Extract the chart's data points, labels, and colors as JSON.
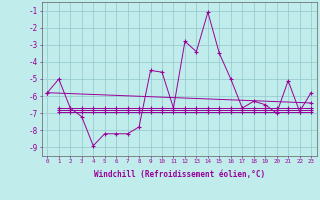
{
  "xlabel": "Windchill (Refroidissement éolien,°C)",
  "xlim": [
    -0.5,
    23.5
  ],
  "ylim": [
    -9.5,
    -0.5
  ],
  "yticks": [
    -9,
    -8,
    -7,
    -6,
    -5,
    -4,
    -3,
    -2,
    -1
  ],
  "xticks": [
    0,
    1,
    2,
    3,
    4,
    5,
    6,
    7,
    8,
    9,
    10,
    11,
    12,
    13,
    14,
    15,
    16,
    17,
    18,
    19,
    20,
    21,
    22,
    23
  ],
  "background_color": "#c0ecec",
  "grid_color": "#90c8cc",
  "line_color": "#990099",
  "lines": [
    {
      "x": [
        0,
        1,
        2,
        3,
        4,
        5,
        6,
        7,
        8,
        9,
        10,
        11,
        12,
        13,
        14,
        15,
        16,
        17,
        18,
        19,
        20,
        21,
        22,
        23
      ],
      "y": [
        -5.8,
        -5.0,
        -6.7,
        -7.2,
        -8.9,
        -8.2,
        -8.2,
        -8.2,
        -7.8,
        -4.5,
        -4.6,
        -6.7,
        -2.8,
        -3.4,
        -1.1,
        -3.5,
        -5.0,
        -6.7,
        -6.3,
        -6.5,
        -7.0,
        -5.1,
        -6.9,
        -5.8
      ]
    },
    {
      "x": [
        0,
        23
      ],
      "y": [
        -5.8,
        -6.4
      ]
    },
    {
      "x": [
        1,
        2,
        3,
        4,
        5,
        6,
        7,
        8,
        9,
        10,
        11,
        12,
        13,
        14,
        15,
        16,
        17,
        18,
        19,
        20,
        21,
        22,
        23
      ],
      "y": [
        -6.7,
        -6.7,
        -6.7,
        -6.7,
        -6.7,
        -6.7,
        -6.7,
        -6.7,
        -6.7,
        -6.7,
        -6.7,
        -6.7,
        -6.7,
        -6.7,
        -6.7,
        -6.7,
        -6.7,
        -6.7,
        -6.7,
        -6.7,
        -6.7,
        -6.7,
        -6.7
      ]
    },
    {
      "x": [
        1,
        2,
        3,
        4,
        5,
        6,
        7,
        8,
        9,
        10,
        11,
        12,
        13,
        14,
        15,
        16,
        17,
        18,
        19,
        20,
        21,
        22,
        23
      ],
      "y": [
        -6.8,
        -6.8,
        -6.8,
        -6.8,
        -6.8,
        -6.8,
        -6.8,
        -6.8,
        -6.8,
        -6.8,
        -6.8,
        -6.8,
        -6.8,
        -6.8,
        -6.8,
        -6.8,
        -6.8,
        -6.8,
        -6.8,
        -6.8,
        -6.8,
        -6.8,
        -6.8
      ]
    },
    {
      "x": [
        1,
        2,
        3,
        4,
        5,
        6,
        7,
        8,
        9,
        10,
        11,
        12,
        13,
        14,
        15,
        16,
        17,
        18,
        19,
        20,
        21,
        22,
        23
      ],
      "y": [
        -6.9,
        -6.9,
        -6.9,
        -6.9,
        -6.9,
        -6.9,
        -6.9,
        -6.9,
        -6.9,
        -6.9,
        -6.9,
        -6.9,
        -6.9,
        -6.9,
        -6.9,
        -6.9,
        -6.9,
        -6.9,
        -6.9,
        -6.9,
        -6.9,
        -6.9,
        -6.9
      ]
    }
  ]
}
